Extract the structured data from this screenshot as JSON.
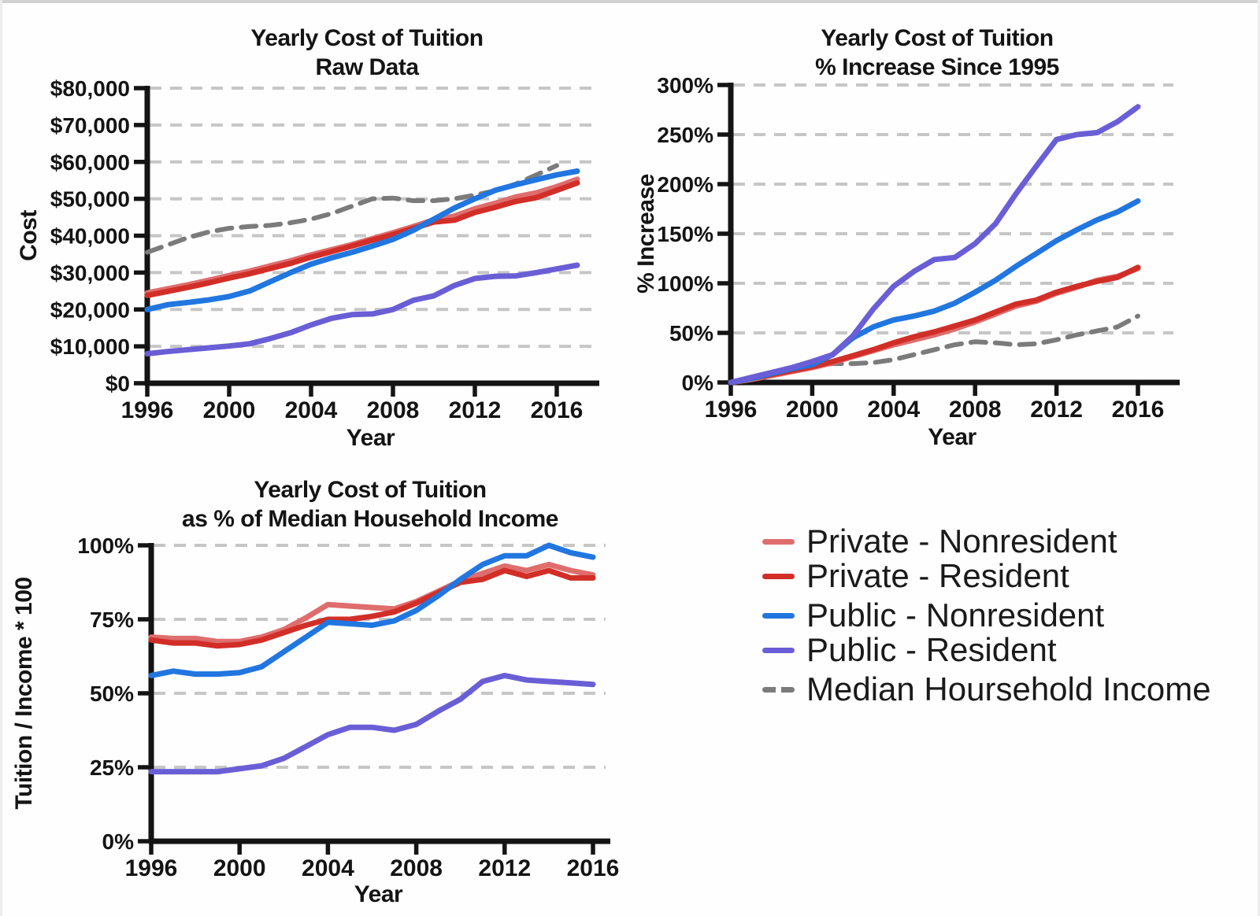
{
  "colors": {
    "private_nonresident": "#DF6D6D",
    "private_resident": "#D22E28",
    "public_nonresident": "#2176E0",
    "public_resident": "#6A5ED6",
    "median_income": "#7B7B7B",
    "axis": "#141414",
    "gridline": "#C6C6C6"
  },
  "legend": {
    "items": [
      {
        "label": "Private - Nonresident",
        "color_key": "private_nonresident",
        "dashed": false
      },
      {
        "label": "Private - Resident",
        "color_key": "private_resident",
        "dashed": false
      },
      {
        "label": "Public - Nonresident",
        "color_key": "public_nonresident",
        "dashed": false
      },
      {
        "label": "Public - Resident",
        "color_key": "public_resident",
        "dashed": false
      },
      {
        "label": "Median Hoursehold Income",
        "color_key": "median_income",
        "dashed": true
      }
    ]
  },
  "chart_data": [
    {
      "type": "line",
      "title_line1": "Yearly Cost of Tuition",
      "title_line2": "Raw Data",
      "xlabel": "Year",
      "ylabel": "Cost",
      "grid": "horizontal-dashed",
      "legend_position": "separate-panel",
      "xlim": [
        1996,
        2017
      ],
      "ylim": [
        0,
        80000
      ],
      "x_ticks": [
        1996,
        2000,
        2004,
        2008,
        2012,
        2016
      ],
      "y_ticks": [
        {
          "v": 0,
          "label": "$0"
        },
        {
          "v": 10000,
          "label": "$10,000"
        },
        {
          "v": 20000,
          "label": "$20,000"
        },
        {
          "v": 30000,
          "label": "$30,000"
        },
        {
          "v": 40000,
          "label": "$40,000"
        },
        {
          "v": 50000,
          "label": "$50,000"
        },
        {
          "v": 60000,
          "label": "$60,000"
        },
        {
          "v": 70000,
          "label": "$70,000"
        },
        {
          "v": 80000,
          "label": "$80,000"
        }
      ],
      "x": [
        1996,
        1997,
        1998,
        1999,
        2000,
        2001,
        2002,
        2003,
        2004,
        2005,
        2006,
        2007,
        2008,
        2009,
        2010,
        2011,
        2012,
        2013,
        2014,
        2015,
        2016,
        2017
      ],
      "series": [
        {
          "name": "Median Hoursehold Income",
          "color_key": "median_income",
          "dashed": true,
          "values": [
            35500,
            37500,
            39500,
            41000,
            42000,
            42500,
            42800,
            43500,
            44500,
            46000,
            48000,
            50000,
            50200,
            49500,
            49500,
            50000,
            51000,
            52200,
            54000,
            56500,
            59000,
            null
          ]
        },
        {
          "name": "Private - Nonresident",
          "color_key": "private_nonresident",
          "dashed": false,
          "values": [
            24500,
            25600,
            26700,
            27900,
            29200,
            30400,
            31800,
            33200,
            34800,
            36200,
            37600,
            39200,
            40800,
            42500,
            44300,
            45300,
            47300,
            48800,
            50500,
            51600,
            53300,
            55300
          ]
        },
        {
          "name": "Private - Resident",
          "color_key": "private_resident",
          "dashed": false,
          "values": [
            23800,
            24900,
            26000,
            27200,
            28500,
            29700,
            31100,
            32500,
            34200,
            35700,
            37200,
            38800,
            40300,
            42000,
            43700,
            44200,
            46300,
            47700,
            49300,
            50300,
            52300,
            54300
          ]
        },
        {
          "name": "Public - Nonresident",
          "color_key": "public_nonresident",
          "dashed": false,
          "values": [
            20000,
            21300,
            21900,
            22600,
            23500,
            25000,
            27500,
            30000,
            32300,
            34000,
            35500,
            37200,
            39000,
            41500,
            44500,
            47500,
            50000,
            52300,
            53800,
            55200,
            56500,
            57500
          ]
        },
        {
          "name": "Public - Resident",
          "color_key": "public_resident",
          "dashed": false,
          "values": [
            8000,
            8600,
            9100,
            9600,
            10100,
            10700,
            12100,
            13700,
            15800,
            17600,
            18600,
            18800,
            20000,
            22500,
            23700,
            26500,
            28400,
            29000,
            29100,
            30000,
            31000,
            32000
          ]
        }
      ]
    },
    {
      "type": "line",
      "title_line1": "Yearly Cost of Tuition",
      "title_line2": "% Increase Since 1995",
      "xlabel": "Year",
      "ylabel": "% Increase",
      "grid": "horizontal-dashed",
      "legend_position": "separate-panel",
      "xlim": [
        1996,
        2016
      ],
      "ylim": [
        0,
        300
      ],
      "x_ticks": [
        1996,
        2000,
        2004,
        2008,
        2012,
        2016
      ],
      "y_ticks": [
        {
          "v": 0,
          "label": "0%"
        },
        {
          "v": 50,
          "label": "50%"
        },
        {
          "v": 100,
          "label": "100%"
        },
        {
          "v": 150,
          "label": "150%"
        },
        {
          "v": 200,
          "label": "200%"
        },
        {
          "v": 250,
          "label": "250%"
        },
        {
          "v": 300,
          "label": "300%"
        }
      ],
      "x": [
        1996,
        1997,
        1998,
        1999,
        2000,
        2001,
        2002,
        2003,
        2004,
        2005,
        2006,
        2007,
        2008,
        2009,
        2010,
        2011,
        2012,
        2013,
        2014,
        2015,
        2016
      ],
      "series": [
        {
          "name": "Median Hoursehold Income",
          "color_key": "median_income",
          "dashed": true,
          "values": [
            0,
            3,
            7,
            12,
            17,
            19,
            19,
            20,
            23,
            28,
            33,
            38,
            41,
            40,
            38,
            39,
            43,
            48,
            52,
            56,
            67
          ]
        },
        {
          "name": "Private - Nonresident",
          "color_key": "private_nonresident",
          "dashed": false,
          "values": [
            0,
            3,
            7,
            11,
            15,
            20,
            26,
            32,
            38,
            43,
            48,
            54,
            61,
            69,
            77,
            82,
            90,
            96,
            103,
            107,
            115
          ]
        },
        {
          "name": "Private - Resident",
          "color_key": "private_resident",
          "dashed": false,
          "values": [
            0,
            4,
            8,
            12,
            16,
            21,
            27,
            33,
            40,
            46,
            51,
            57,
            63,
            71,
            79,
            83,
            91,
            97,
            102,
            106,
            116
          ]
        },
        {
          "name": "Public - Nonresident",
          "color_key": "public_nonresident",
          "dashed": false,
          "values": [
            0,
            4,
            9,
            14,
            18,
            28,
            45,
            56,
            63,
            67,
            72,
            80,
            91,
            103,
            117,
            130,
            143,
            154,
            164,
            172,
            183
          ]
        },
        {
          "name": "Public - Resident",
          "color_key": "public_resident",
          "dashed": false,
          "values": [
            0,
            5,
            10,
            15,
            21,
            28,
            47,
            74,
            97,
            112,
            124,
            126,
            140,
            160,
            190,
            218,
            245,
            250,
            252,
            263,
            278
          ]
        }
      ]
    },
    {
      "type": "line",
      "title_line1": "Yearly Cost of Tuition",
      "title_line2": "as % of Median Household Income",
      "xlabel": "Year",
      "ylabel": "Tuition / Income * 100",
      "grid": "horizontal-dashed",
      "legend_position": "separate-panel",
      "xlim": [
        1996,
        2016
      ],
      "ylim": [
        0,
        100
      ],
      "x_ticks": [
        1996,
        2000,
        2004,
        2008,
        2012,
        2016
      ],
      "y_ticks": [
        {
          "v": 0,
          "label": "0%"
        },
        {
          "v": 25,
          "label": "25%"
        },
        {
          "v": 50,
          "label": "50%"
        },
        {
          "v": 75,
          "label": "75%"
        },
        {
          "v": 100,
          "label": "100%"
        }
      ],
      "x": [
        1996,
        1997,
        1998,
        1999,
        2000,
        2001,
        2002,
        2003,
        2004,
        2005,
        2006,
        2007,
        2008,
        2009,
        2010,
        2011,
        2012,
        2013,
        2014,
        2015,
        2016
      ],
      "series": [
        {
          "name": "Private - Nonresident",
          "color_key": "private_nonresident",
          "dashed": false,
          "values": [
            69,
            68.5,
            68.5,
            67.5,
            67.5,
            69,
            71.5,
            75.5,
            80,
            79.5,
            79,
            78.5,
            81,
            84.5,
            88,
            90.5,
            93,
            91.5,
            93.5,
            91.5,
            90
          ]
        },
        {
          "name": "Private - Resident",
          "color_key": "private_resident",
          "dashed": false,
          "values": [
            68,
            67,
            67,
            66,
            66.5,
            68,
            70.5,
            73,
            75,
            75,
            76,
            77.5,
            80.5,
            84,
            87.5,
            88.5,
            91.5,
            89.5,
            91.5,
            89,
            89
          ]
        },
        {
          "name": "Public - Nonresident",
          "color_key": "public_nonresident",
          "dashed": false,
          "values": [
            56,
            57.5,
            56.5,
            56.5,
            57,
            59,
            64,
            69,
            74,
            73.5,
            73,
            74.5,
            78,
            83,
            88.5,
            93.5,
            96.5,
            96.5,
            100,
            97.5,
            96
          ]
        },
        {
          "name": "Public - Resident",
          "color_key": "public_resident",
          "dashed": false,
          "values": [
            23.5,
            23.5,
            23.5,
            23.5,
            24.5,
            25.5,
            28,
            32,
            36,
            38.5,
            38.5,
            37.5,
            39.5,
            44,
            48,
            54,
            56,
            54.5,
            54,
            53.5,
            53
          ]
        }
      ]
    }
  ]
}
